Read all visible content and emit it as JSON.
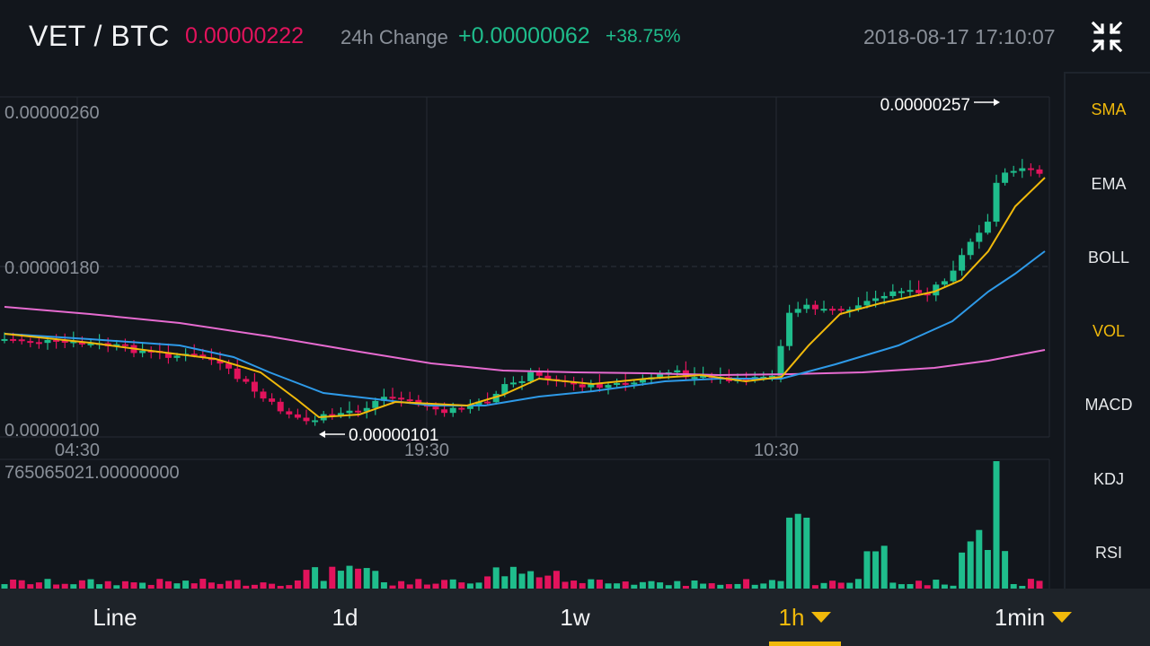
{
  "header": {
    "pair": "VET / BTC",
    "last_price": "0.00000222",
    "change_label": "24h Change",
    "change_value": "+0.00000062",
    "change_pct": "+38.75%",
    "datetime": "2018-08-17 17:10:07",
    "collapse_icon": "collapse-arrows-icon"
  },
  "colors": {
    "up": "#1fbd8c",
    "down": "#e2135c",
    "accent": "#f0b90b",
    "ma_short": "#f0b90b",
    "ma_mid": "#2e9ae8",
    "ma_long": "#e66bd0"
  },
  "chart_data": [
    {
      "type": "candlestick",
      "y_ticks": [
        "0.00000260",
        "0.00000180",
        "0.00000100"
      ],
      "x_ticks": [
        "04:30",
        "19:30",
        "10:30"
      ],
      "ylim": [
        1e-06,
        2.6e-06
      ],
      "annotations": {
        "high": "0.00000257",
        "low": "0.00000101"
      },
      "indicator": "SMA",
      "grid": true
    },
    {
      "type": "bar",
      "title": "765065021.00000000",
      "series_label": "VOL"
    }
  ],
  "sidebar": {
    "items": [
      {
        "label": "SMA",
        "active": true
      },
      {
        "label": "EMA",
        "active": false
      },
      {
        "label": "BOLL",
        "active": false
      },
      {
        "label": "VOL",
        "active": true
      },
      {
        "label": "MACD",
        "active": false
      },
      {
        "label": "KDJ",
        "active": false
      },
      {
        "label": "RSI",
        "active": false
      }
    ]
  },
  "tabs": [
    {
      "label": "Line",
      "active": false
    },
    {
      "label": "1d",
      "active": false
    },
    {
      "label": "1w",
      "active": false
    },
    {
      "label": "1h",
      "active": true,
      "dropdown": true
    },
    {
      "label": "1min",
      "active": false,
      "dropdown": true
    }
  ]
}
